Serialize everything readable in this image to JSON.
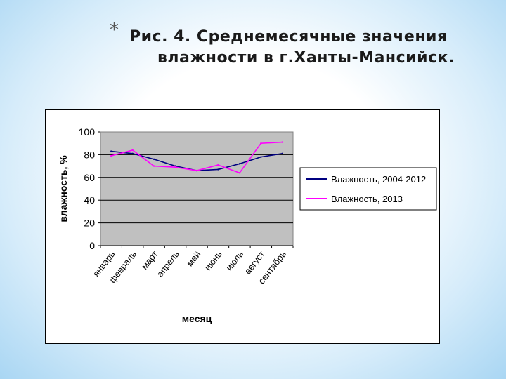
{
  "slide": {
    "bullet": "*",
    "title_line1": "Рис. 4. Среднемесячные значения",
    "title_line2": "влажности в г.Ханты-Мансийск."
  },
  "chart_data": {
    "type": "line",
    "title": "",
    "xlabel": "месяц",
    "ylabel": "влажность, %",
    "ylim": [
      0,
      100
    ],
    "yticks": [
      0,
      20,
      40,
      60,
      80,
      100
    ],
    "grid": "horizontal",
    "legend": "right",
    "categories": [
      "январь",
      "февраль",
      "март",
      "апрель",
      "май",
      "июнь",
      "июль",
      "август",
      "сентябрь"
    ],
    "series": [
      {
        "name": "Влажность, 2004-2012",
        "color": "#000080",
        "values": [
          83,
          81,
          76,
          70,
          66,
          67,
          72,
          78,
          81
        ]
      },
      {
        "name": "Влажность, 2013",
        "color": "#ff00ff",
        "values": [
          79,
          84,
          70,
          69,
          66,
          71,
          64,
          90,
          91
        ]
      }
    ]
  }
}
